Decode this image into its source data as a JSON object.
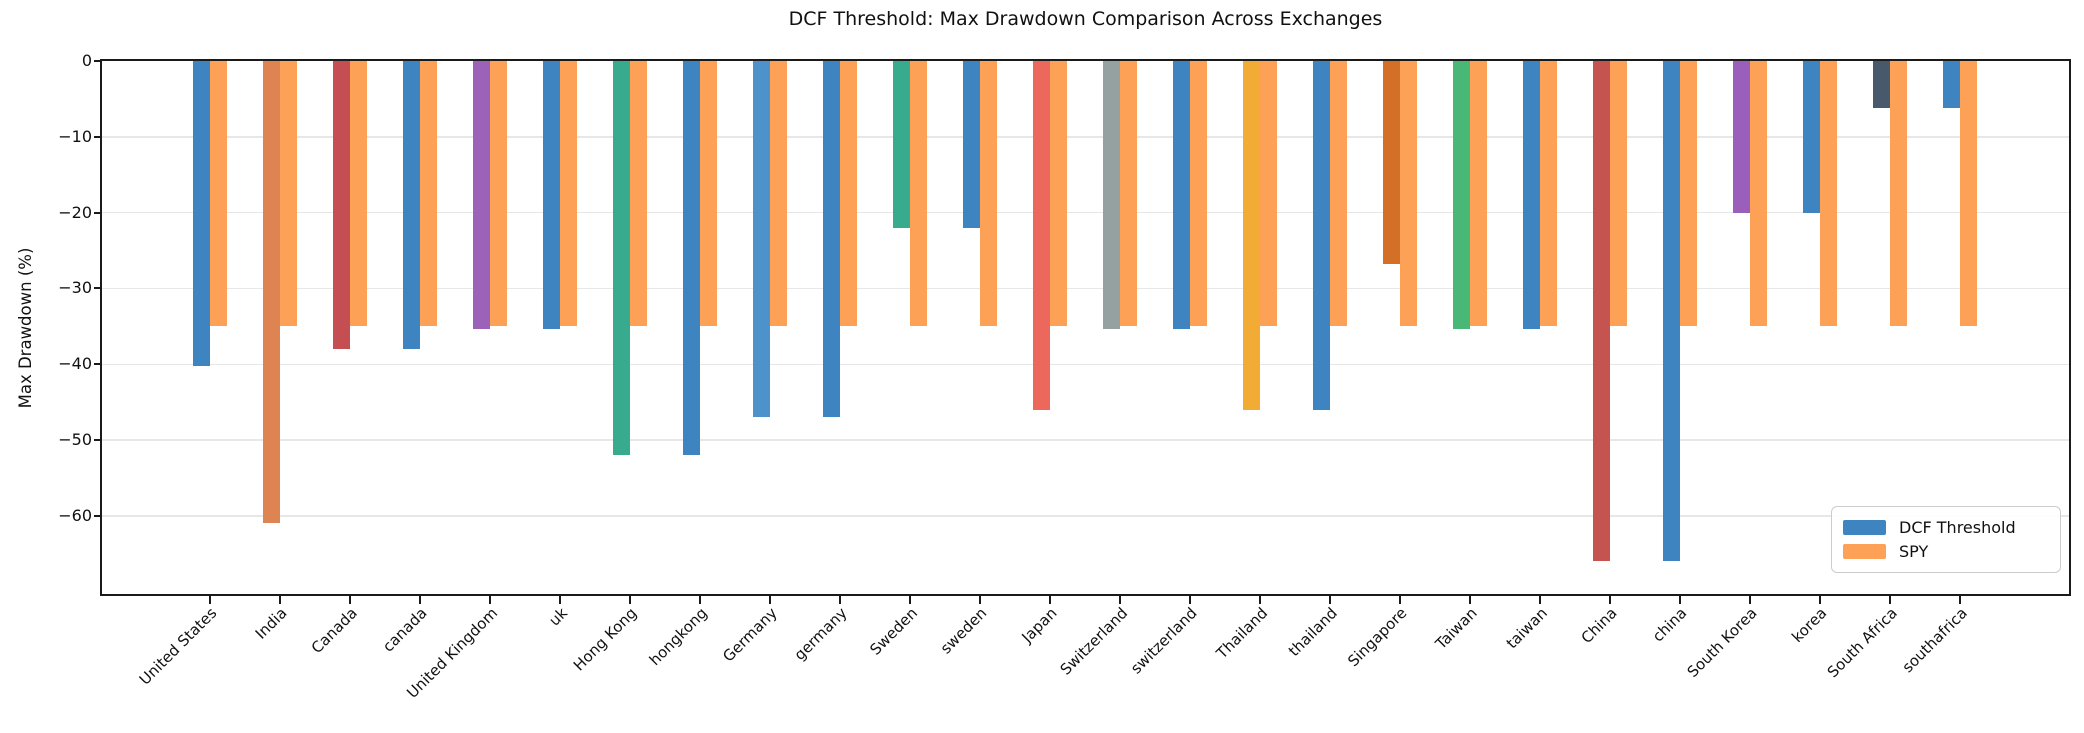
{
  "chart_data": {
    "type": "bar",
    "title": "DCF Threshold: Max Drawdown Comparison Across Exchanges",
    "ylabel": "Max Drawdown (%)",
    "xlabel": "",
    "categories": [
      "United States",
      "India",
      "Canada",
      "canada",
      "United Kingdom",
      "uk",
      "Hong Kong",
      "hongkong",
      "Germany",
      "germany",
      "Sweden",
      "sweden",
      "Japan",
      "Switzerland",
      "switzerland",
      "Thailand",
      "thailand",
      "Singapore",
      "Taiwan",
      "taiwan",
      "China",
      "china",
      "South Korea",
      "korea",
      "South Africa",
      "southafrica"
    ],
    "series": [
      {
        "name": "DCF Threshold",
        "color": "#3d84c1",
        "values": [
          -40.2,
          -61,
          -38,
          -38,
          -35.4,
          -35.4,
          -52,
          -52,
          -47,
          -47,
          -22,
          -22,
          -46,
          -35.4,
          -35.4,
          -46,
          -46,
          -26.8,
          -35.4,
          -35.4,
          -66,
          -66,
          -20,
          -20,
          -6.2,
          -6.2
        ],
        "bar_colors": [
          "#3d84c1",
          "#dd8452",
          "#c44e52",
          "#3d84c1",
          "#9c61b8",
          "#3d84c1",
          "#38ab8f",
          "#3d84c1",
          "#4e92cc",
          "#3d84c1",
          "#38ab8f",
          "#3d84c1",
          "#ec675c",
          "#95a0a0",
          "#3d84c1",
          "#f2ab34",
          "#3d84c1",
          "#d46f28",
          "#49b877",
          "#3d84c1",
          "#c5534f",
          "#3d84c1",
          "#9a5fba",
          "#3d84c1",
          "#47596a",
          "#3d84c1"
        ]
      },
      {
        "name": "SPY",
        "color": "#fda156",
        "values": [
          -34.9,
          -34.9,
          -34.9,
          -34.9,
          -34.9,
          -34.9,
          -34.9,
          -34.9,
          -34.9,
          -34.9,
          -34.9,
          -34.9,
          -34.9,
          -34.9,
          -34.9,
          -34.9,
          -34.9,
          -34.9,
          -34.9,
          -34.9,
          -34.9,
          -34.9,
          -34.9,
          -34.9,
          -34.9,
          -34.9
        ]
      }
    ],
    "yticks": [
      0,
      -10,
      -20,
      -30,
      -40,
      -50,
      -60
    ],
    "ylim": [
      -70.3,
      0
    ],
    "grid": true,
    "legend_position": "lower right",
    "axis_color": "#1a1a1a",
    "grid_color": "#e7e7e7"
  }
}
